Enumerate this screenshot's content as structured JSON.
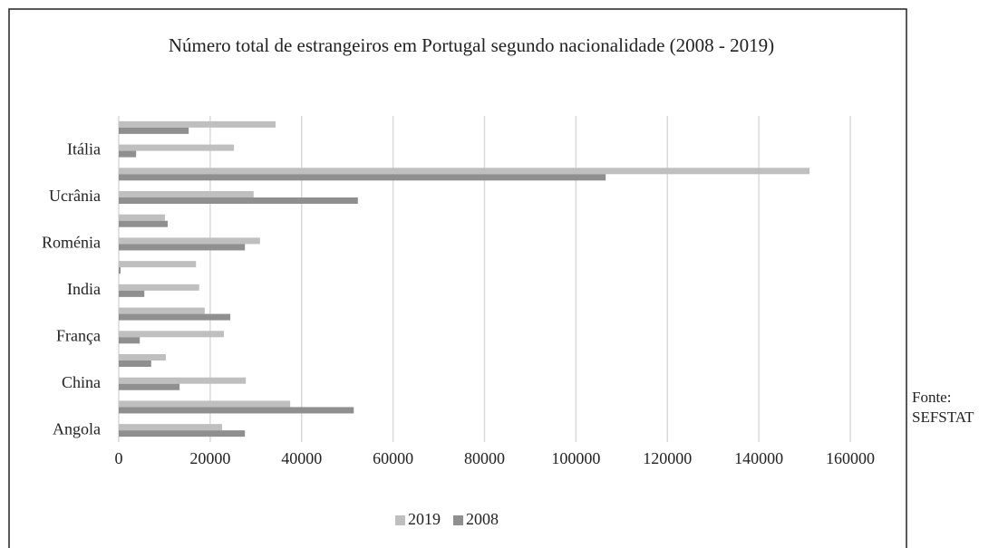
{
  "chart_data": {
    "type": "barh",
    "title": "Número total de estrangeiros em Portugal segundo nacionalidade (2008 - 2019)",
    "source": "Fonte: SEFSTAT",
    "categories": [
      "Angola",
      null,
      "China",
      null,
      "França",
      null,
      "India",
      null,
      "Roménia",
      null,
      "Ucrânia",
      null,
      "Itália",
      null
    ],
    "series": [
      {
        "name": "2019",
        "color": "#bfbfbf",
        "values": [
          22600,
          37500,
          27800,
          10300,
          23000,
          18800,
          17600,
          16900,
          30900,
          10100,
          29500,
          151100,
          25200,
          34300
        ]
      },
      {
        "name": "2008",
        "color": "#8f8f8f",
        "values": [
          27600,
          51400,
          13300,
          7100,
          4600,
          24400,
          5600,
          400,
          27600,
          10700,
          52300,
          106500,
          3800,
          15300
        ]
      }
    ],
    "xlim": [
      0,
      160000
    ],
    "xticks": [
      0,
      20000,
      40000,
      60000,
      80000,
      100000,
      120000,
      140000,
      160000
    ],
    "grid": true,
    "legend": "bottom"
  }
}
